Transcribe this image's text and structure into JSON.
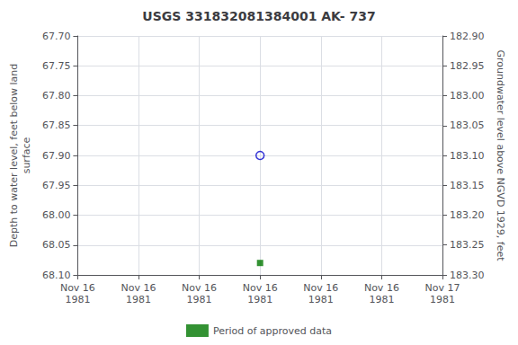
{
  "chart_data": {
    "type": "scatter",
    "title": "USGS 331832081384001 AK- 737",
    "ylabel": "Depth to water level, feet below land\nsurface",
    "y2label": "Groundwater level above NGVD 1929, feet",
    "categories": [
      "Nov 16\n1981",
      "Nov 16\n1981",
      "Nov 16\n1981",
      "Nov 16\n1981",
      "Nov 16\n1981",
      "Nov 16\n1981",
      "Nov 17\n1981"
    ],
    "series": [
      {
        "color": "#0000cc",
        "marker": "open_circle",
        "values": [
          null,
          null,
          null,
          67.9,
          null,
          null,
          null
        ]
      },
      {
        "name": "Period of approved data",
        "color": "#007700",
        "marker": "square",
        "values": [
          null,
          null,
          null,
          68.08,
          null,
          null,
          null
        ]
      }
    ],
    "ylim": [
      68.1,
      67.7
    ],
    "yticks": [
      {
        "value": 67.7,
        "label": "67.70"
      },
      67.75,
      {
        "value": 67.8,
        "label": "67.80"
      },
      67.85,
      {
        "value": 67.9,
        "label": "67.90"
      },
      67.95,
      {
        "value": 68.0,
        "label": "68.00"
      },
      68.05,
      {
        "value": 68.1,
        "label": "68.10"
      }
    ],
    "y2lim": [
      183.3,
      182.9
    ],
    "y2ticks": [
      {
        "value": 183.3,
        "label": "183.30"
      },
      183.25,
      {
        "value": 183.2,
        "label": "183.20"
      },
      183.15,
      {
        "value": 183.1,
        "label": "183.10"
      },
      183.05,
      {
        "value": 183.0,
        "label": "183.00"
      },
      182.95,
      {
        "value": 182.9,
        "label": "182.90"
      }
    ],
    "grid": true,
    "legend": "bottom"
  }
}
